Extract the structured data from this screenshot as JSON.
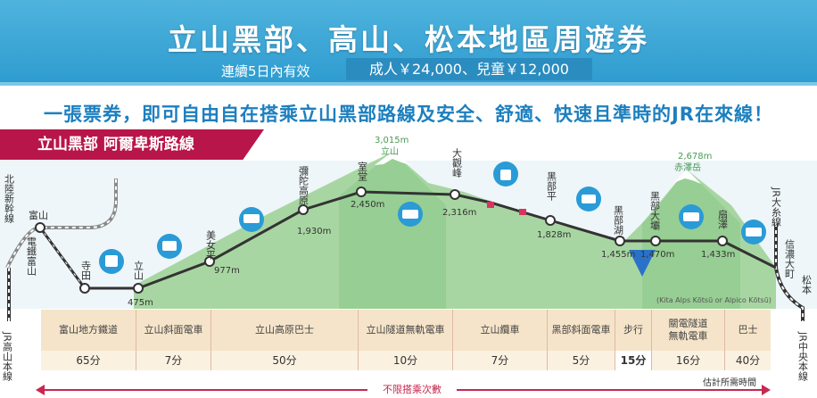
{
  "header": {
    "title": "立山黑部、高山、松本地區周遊券",
    "validity": "連續5日內有效",
    "price": "成人￥24,000、兒童￥12,000"
  },
  "slogan": "一張票券，即可自由自在搭乘立山黑部路線及安全、舒適、快速且準時的JR在來線！",
  "route_title": "立山黑部 阿爾卑斯路線",
  "stations": {
    "hokuriku": "北陸新幹線",
    "toyama": "富山",
    "dentetsu": "電鐵富山",
    "jr_takayama": "JR高山本線",
    "terada": "寺田",
    "tateyama": "立山",
    "bijodaira": "美女平",
    "midagahara": "彌陀高原",
    "murodo": "室堂",
    "daikanbo": "大觀峰",
    "kurobedaira": "黑部平",
    "kurobeko": "黑部湖",
    "kurobedam": "黑部大壩",
    "ogizawa": "扇澤",
    "jr_oito": "JR大糸線",
    "shinano_omachi": "信濃大町",
    "matsumoto": "松本",
    "jr_chuo": "JR中央本線"
  },
  "elevations": {
    "tateyama": "475m",
    "bijodaira": "977m",
    "midagahara": "1,930m",
    "murodo": "2,450m",
    "daikanbo": "2,316m",
    "kurobedaira": "1,828m",
    "kurobeko": "1,455m",
    "kurobedam": "1,470m",
    "ogizawa": "1,433m"
  },
  "peaks": {
    "tateyama_elev": "3,015m",
    "tateyama_name": "立山",
    "akazawa_elev": "2,678m",
    "akazawa_name": "赤澤岳"
  },
  "operator_note": "(Kita Alps Kōtsū or Alpico Kōtsū)",
  "segments": [
    {
      "mode": "富山地方鐵道",
      "time": "65分"
    },
    {
      "mode": "立山斜面電車",
      "time": "7分"
    },
    {
      "mode": "立山高原巴士",
      "time": "50分"
    },
    {
      "mode": "立山隧道無軌電車",
      "time": "10分"
    },
    {
      "mode": "立山纜車",
      "time": "7分"
    },
    {
      "mode": "黑部斜面電車",
      "time": "5分"
    },
    {
      "mode": "步行",
      "time": "15分"
    },
    {
      "mode_line1": "關電隧道",
      "mode_line2": "無軌電車",
      "time": "16分"
    },
    {
      "mode": "巴士",
      "time": "40分"
    }
  ],
  "footer": {
    "unlimited": "不限搭乘次數",
    "estimate": "估計所需時間"
  },
  "colors": {
    "banner": "#2f9cd0",
    "route_tab": "#b8154a",
    "mountain_green": "#9fd09a",
    "table_mode_bg": "#f5e4c9",
    "arrow": "#c7284f"
  }
}
